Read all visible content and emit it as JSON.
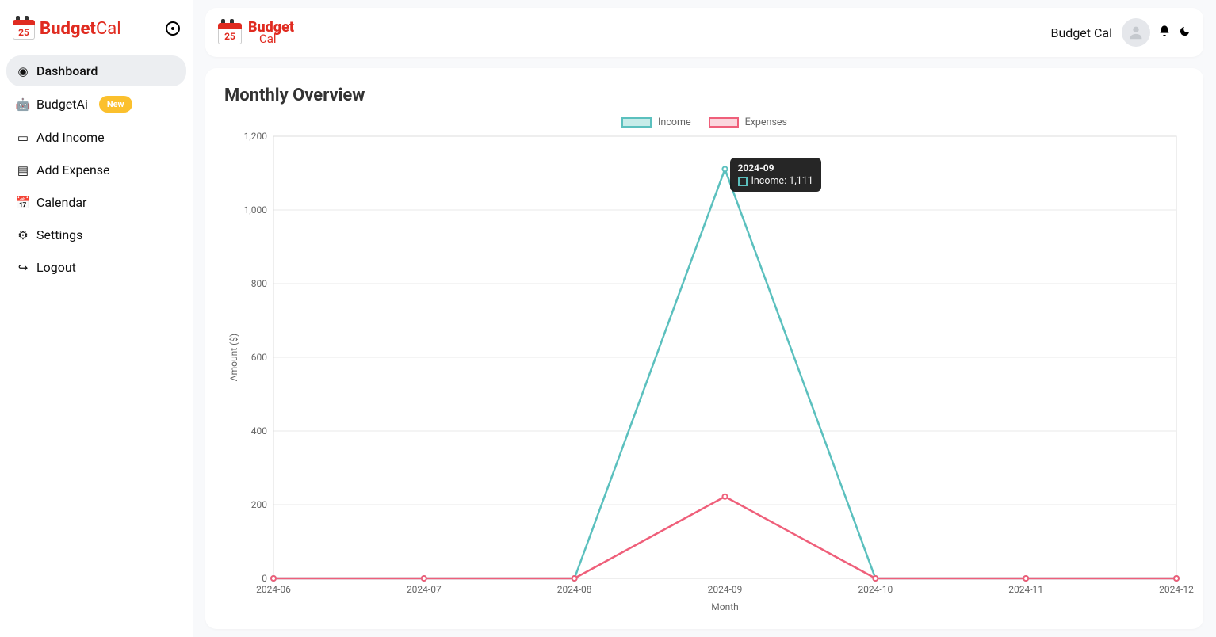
{
  "sidebar": {
    "logo_day": "25",
    "logo_budget": "Budget",
    "logo_cal": "Cal",
    "items": [
      {
        "icon": "dashboard-icon",
        "glyph": "◉",
        "label": "Dashboard",
        "active": true,
        "badge": null
      },
      {
        "icon": "robot-icon",
        "glyph": "🤖",
        "label": "BudgetAi",
        "active": false,
        "badge": "New"
      },
      {
        "icon": "money-icon",
        "glyph": "▭",
        "label": "Add Income",
        "active": false,
        "badge": null
      },
      {
        "icon": "receipt-icon",
        "glyph": "▤",
        "label": "Add Expense",
        "active": false,
        "badge": null
      },
      {
        "icon": "calendar-icon",
        "glyph": "📅",
        "label": "Calendar",
        "active": false,
        "badge": null
      },
      {
        "icon": "gear-icon",
        "glyph": "⚙",
        "label": "Settings",
        "active": false,
        "badge": null
      },
      {
        "icon": "logout-icon",
        "glyph": "↪",
        "label": "Logout",
        "active": false,
        "badge": null
      }
    ]
  },
  "header": {
    "logo_day": "25",
    "logo_budget": "Budget",
    "logo_cal": "Cal",
    "user_name": "Budget Cal"
  },
  "card": {
    "title": "Monthly Overview"
  },
  "chart": {
    "type": "line",
    "x_label": "Month",
    "y_label": "Amount ($)",
    "categories": [
      "2024-06",
      "2024-07",
      "2024-08",
      "2024-09",
      "2024-10",
      "2024-11",
      "2024-12"
    ],
    "y_ticks": [
      0,
      200,
      400,
      600,
      800,
      1000,
      1200
    ],
    "y_tick_labels": [
      "0",
      "200",
      "400",
      "600",
      "800",
      "1,000",
      "1,200"
    ],
    "ylim": [
      0,
      1200
    ],
    "series": [
      {
        "name": "Income",
        "color": "#5bc0be",
        "fill": "#c7ece9",
        "values": [
          0,
          0,
          0,
          1111,
          0,
          0,
          0
        ]
      },
      {
        "name": "Expenses",
        "color": "#ef5f7a",
        "fill": "#fbd7de",
        "values": [
          0,
          0,
          0,
          222,
          0,
          0,
          0
        ]
      }
    ],
    "legend": [
      {
        "label": "Income",
        "stroke": "#5bc0be",
        "fill": "#c7ece9"
      },
      {
        "label": "Expenses",
        "stroke": "#ef5f7a",
        "fill": "#fbd7de"
      }
    ],
    "background_color": "#ffffff",
    "grid_color": "#e8e8e8",
    "border_color": "#dcdcdc",
    "axis_text_color": "#666666",
    "line_width": 2.5,
    "marker_radius": 3
  },
  "tooltip": {
    "title": "2024-09",
    "swatch_stroke": "#5bc0be",
    "label": "Income: 1,111",
    "target_series": 0,
    "target_index": 3
  }
}
